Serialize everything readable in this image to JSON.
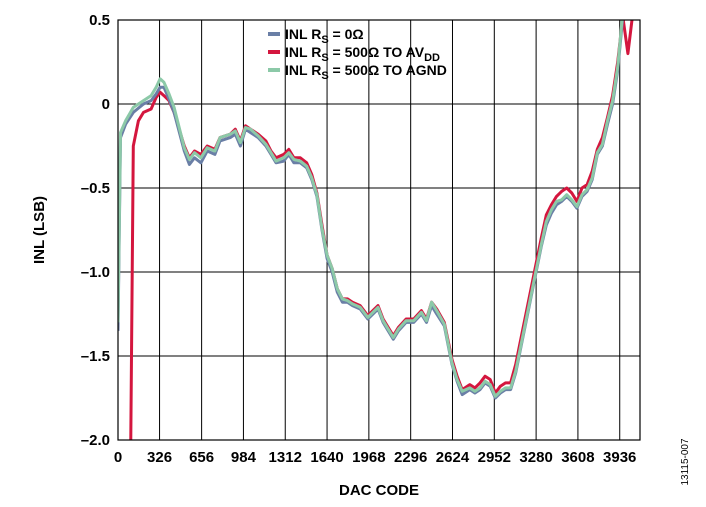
{
  "figure_id": "13115-007",
  "chart_data": {
    "type": "line",
    "xlabel": "DAC CODE",
    "ylabel": "INL (LSB)",
    "xlim": [
      0,
      4095
    ],
    "ylim": [
      -2.0,
      0.5
    ],
    "x_ticks": [
      0,
      326,
      656,
      984,
      1312,
      1640,
      1968,
      2296,
      2624,
      2952,
      3280,
      3608,
      3936
    ],
    "x_tick_labels": [
      "0",
      "326",
      "656",
      "984",
      "1312",
      "1640",
      "1968",
      "2296",
      "2624",
      "2952",
      "3280",
      "3608",
      "3936"
    ],
    "y_ticks": [
      0.5,
      0,
      -0.5,
      -1.0,
      -1.5,
      -2.0
    ],
    "y_tick_labels": [
      "0.5",
      "0",
      "–0.5",
      "–1.0",
      "–1.5",
      "–2.0"
    ],
    "grid": true,
    "legend_position": "top-center",
    "series": [
      {
        "name": "INL RS = 0Ω",
        "legend": {
          "base": "INL R",
          "sub": "S",
          "rest": " = 0Ω",
          "sub2": ""
        },
        "color": "#6a7fa6",
        "x": [
          0,
          20,
          60,
          120,
          200,
          260,
          300,
          330,
          360,
          400,
          440,
          520,
          560,
          600,
          650,
          700,
          760,
          800,
          880,
          920,
          960,
          1000,
          1040,
          1100,
          1160,
          1200,
          1240,
          1300,
          1340,
          1380,
          1430,
          1480,
          1520,
          1560,
          1600,
          1640,
          1680,
          1720,
          1760,
          1800,
          1840,
          1900,
          1960,
          2000,
          2040,
          2080,
          2120,
          2160,
          2200,
          2260,
          2320,
          2380,
          2420,
          2460,
          2500,
          2560,
          2620,
          2660,
          2700,
          2760,
          2800,
          2840,
          2880,
          2920,
          2960,
          3000,
          3040,
          3080,
          3120,
          3160,
          3200,
          3240,
          3280,
          3320,
          3360,
          3400,
          3440,
          3480,
          3520,
          3560,
          3600,
          3640,
          3680,
          3720,
          3760,
          3800,
          3840,
          3880,
          3920,
          3960,
          4000
        ],
        "y": [
          -1.35,
          -0.2,
          -0.12,
          -0.05,
          0,
          0.02,
          0.06,
          0.1,
          0.1,
          0.03,
          -0.05,
          -0.28,
          -0.36,
          -0.32,
          -0.35,
          -0.28,
          -0.3,
          -0.22,
          -0.2,
          -0.18,
          -0.25,
          -0.15,
          -0.17,
          -0.2,
          -0.25,
          -0.3,
          -0.35,
          -0.34,
          -0.3,
          -0.35,
          -0.35,
          -0.38,
          -0.45,
          -0.55,
          -0.75,
          -0.92,
          -1.0,
          -1.12,
          -1.18,
          -1.18,
          -1.2,
          -1.22,
          -1.28,
          -1.25,
          -1.22,
          -1.3,
          -1.35,
          -1.4,
          -1.35,
          -1.3,
          -1.3,
          -1.25,
          -1.3,
          -1.2,
          -1.25,
          -1.32,
          -1.55,
          -1.65,
          -1.73,
          -1.7,
          -1.72,
          -1.7,
          -1.66,
          -1.68,
          -1.75,
          -1.72,
          -1.7,
          -1.7,
          -1.6,
          -1.45,
          -1.3,
          -1.15,
          -1.0,
          -0.85,
          -0.72,
          -0.65,
          -0.6,
          -0.58,
          -0.55,
          -0.58,
          -0.62,
          -0.55,
          -0.52,
          -0.45,
          -0.3,
          -0.25,
          -0.12,
          0.0,
          0.2,
          0.52,
          0.6
        ]
      },
      {
        "name": "INL RS = 500Ω TO AVDD",
        "legend": {
          "base": "INL R",
          "sub": "S",
          "rest": " = 500Ω TO AV",
          "sub2": "DD"
        },
        "color": "#d4163e",
        "x": [
          100,
          120,
          160,
          200,
          260,
          300,
          330,
          360,
          400,
          440,
          520,
          560,
          600,
          650,
          700,
          760,
          800,
          880,
          920,
          960,
          1000,
          1040,
          1100,
          1160,
          1200,
          1240,
          1300,
          1340,
          1380,
          1430,
          1480,
          1520,
          1560,
          1600,
          1640,
          1680,
          1720,
          1760,
          1800,
          1840,
          1900,
          1960,
          2000,
          2040,
          2080,
          2120,
          2160,
          2200,
          2260,
          2320,
          2380,
          2420,
          2460,
          2500,
          2560,
          2620,
          2660,
          2700,
          2760,
          2800,
          2840,
          2880,
          2920,
          2960,
          3000,
          3040,
          3080,
          3120,
          3160,
          3200,
          3240,
          3280,
          3320,
          3360,
          3400,
          3440,
          3480,
          3520,
          3560,
          3600,
          3640,
          3680,
          3720,
          3760,
          3800,
          3840,
          3880,
          3920,
          3960,
          4000,
          4040
        ],
        "y": [
          -2.05,
          -0.25,
          -0.1,
          -0.05,
          -0.03,
          0.04,
          0.07,
          0.05,
          0.02,
          -0.05,
          -0.25,
          -0.32,
          -0.28,
          -0.3,
          -0.25,
          -0.27,
          -0.2,
          -0.18,
          -0.15,
          -0.22,
          -0.13,
          -0.15,
          -0.18,
          -0.22,
          -0.28,
          -0.32,
          -0.3,
          -0.27,
          -0.32,
          -0.32,
          -0.35,
          -0.42,
          -0.53,
          -0.72,
          -0.9,
          -0.98,
          -1.1,
          -1.16,
          -1.16,
          -1.18,
          -1.2,
          -1.26,
          -1.23,
          -1.2,
          -1.28,
          -1.33,
          -1.38,
          -1.33,
          -1.28,
          -1.28,
          -1.23,
          -1.28,
          -1.18,
          -1.22,
          -1.3,
          -1.52,
          -1.62,
          -1.7,
          -1.67,
          -1.69,
          -1.66,
          -1.62,
          -1.64,
          -1.72,
          -1.68,
          -1.66,
          -1.66,
          -1.55,
          -1.4,
          -1.25,
          -1.1,
          -0.95,
          -0.8,
          -0.66,
          -0.6,
          -0.55,
          -0.52,
          -0.5,
          -0.53,
          -0.58,
          -0.5,
          -0.48,
          -0.4,
          -0.27,
          -0.2,
          -0.08,
          0.05,
          0.25,
          0.52,
          0.3,
          0.55
        ]
      },
      {
        "name": "INL RS = 500Ω TO AGND",
        "legend": {
          "base": "INL R",
          "sub": "S",
          "rest": " = 500Ω TO AGND",
          "sub2": ""
        },
        "color": "#8cc9a8",
        "x": [
          0,
          20,
          60,
          120,
          200,
          260,
          300,
          330,
          360,
          400,
          440,
          520,
          560,
          600,
          650,
          700,
          760,
          800,
          880,
          920,
          960,
          1000,
          1040,
          1100,
          1160,
          1200,
          1240,
          1300,
          1340,
          1380,
          1430,
          1480,
          1520,
          1560,
          1600,
          1640,
          1680,
          1720,
          1760,
          1800,
          1840,
          1900,
          1960,
          2000,
          2040,
          2080,
          2120,
          2160,
          2200,
          2260,
          2320,
          2380,
          2420,
          2460,
          2500,
          2560,
          2620,
          2660,
          2700,
          2760,
          2800,
          2840,
          2880,
          2920,
          2960,
          3000,
          3040,
          3080,
          3120,
          3160,
          3200,
          3240,
          3280,
          3320,
          3360,
          3400,
          3440,
          3480,
          3520,
          3560,
          3600,
          3640,
          3680,
          3720,
          3760,
          3800,
          3840,
          3880,
          3920,
          3960
        ],
        "y": [
          -1.3,
          -0.17,
          -0.1,
          -0.02,
          0.02,
          0.05,
          0.1,
          0.15,
          0.13,
          0.06,
          -0.02,
          -0.26,
          -0.33,
          -0.29,
          -0.32,
          -0.26,
          -0.28,
          -0.2,
          -0.18,
          -0.16,
          -0.23,
          -0.14,
          -0.15,
          -0.19,
          -0.24,
          -0.29,
          -0.34,
          -0.32,
          -0.29,
          -0.33,
          -0.34,
          -0.37,
          -0.44,
          -0.54,
          -0.74,
          -0.9,
          -0.98,
          -1.1,
          -1.16,
          -1.17,
          -1.19,
          -1.21,
          -1.27,
          -1.24,
          -1.21,
          -1.29,
          -1.34,
          -1.39,
          -1.34,
          -1.29,
          -1.29,
          -1.24,
          -1.29,
          -1.18,
          -1.23,
          -1.31,
          -1.54,
          -1.64,
          -1.71,
          -1.69,
          -1.71,
          -1.69,
          -1.65,
          -1.67,
          -1.74,
          -1.71,
          -1.69,
          -1.69,
          -1.59,
          -1.44,
          -1.29,
          -1.14,
          -0.99,
          -0.84,
          -0.7,
          -0.63,
          -0.58,
          -0.57,
          -0.54,
          -0.57,
          -0.61,
          -0.54,
          -0.51,
          -0.44,
          -0.29,
          -0.24,
          -0.1,
          0.02,
          0.22,
          0.55
        ]
      }
    ]
  }
}
